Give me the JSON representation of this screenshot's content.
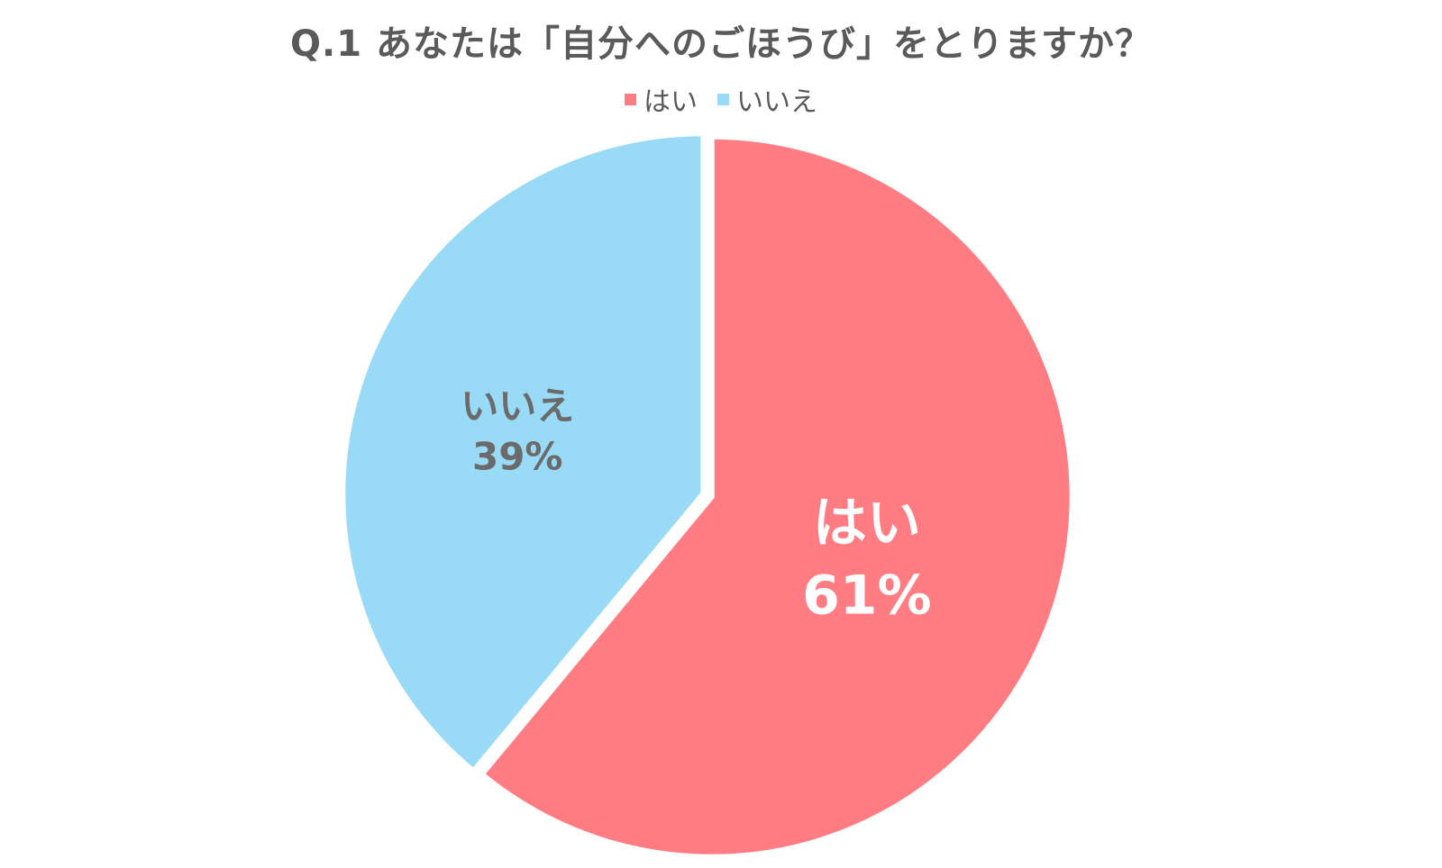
{
  "chart_data": {
    "type": "pie",
    "title": "Q.1 あなたは「自分へのごほうび」をとりますか？",
    "legend_position": "top-center",
    "slices": [
      {
        "label": "はい",
        "value": 61,
        "display": "61%",
        "color": "#ff7d82",
        "label_color": "#ffffff"
      },
      {
        "label": "いいえ",
        "value": 39,
        "display": "39%",
        "color": "#99daf7",
        "label_color": "#6b6b6b"
      }
    ]
  }
}
